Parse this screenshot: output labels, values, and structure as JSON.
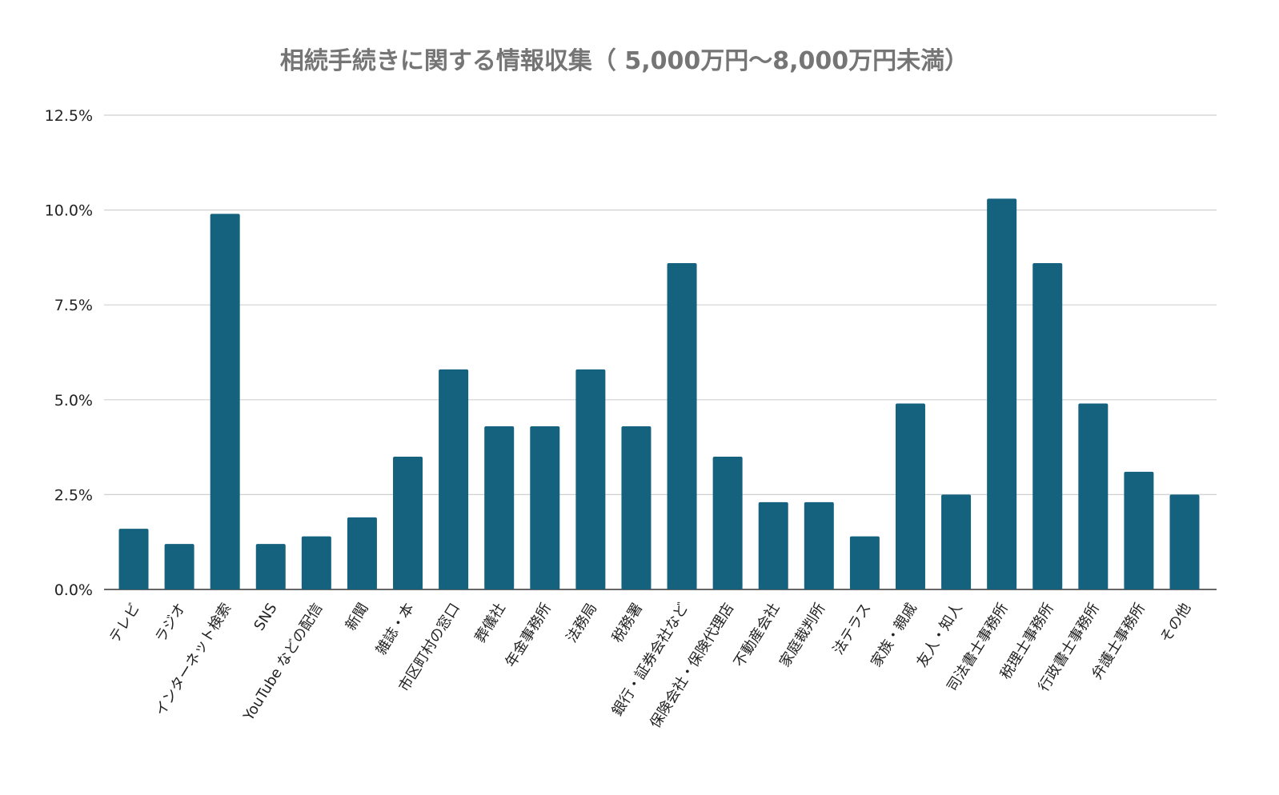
{
  "chart_data": {
    "type": "bar",
    "title": "相続手続きに関する情報収集（ 5,000万円～8,000万円未満）",
    "xlabel": "",
    "ylabel": "",
    "ylim": [
      0,
      12.5
    ],
    "yticks": [
      "0.0%",
      "2.5%",
      "5.0%",
      "7.5%",
      "10.0%",
      "12.5%"
    ],
    "grid": true,
    "color": "#15627f",
    "categories": [
      "テレビ",
      "ラジオ",
      "インターネット検索",
      "SNS",
      "YouTube などの配信",
      "新聞",
      "雑誌・本",
      "市区町村の窓口",
      "葬儀社",
      "年金事務所",
      "法務局",
      "税務署",
      "銀行・証券会社など",
      "保険会社・保険代理店",
      "不動産会社",
      "家庭裁判所",
      "法テラス",
      "家族・親戚",
      "友人・知人",
      "司法書士事務所",
      "税理士事務所",
      "行政書士事務所",
      "弁護士事務所",
      "その他"
    ],
    "values": [
      1.6,
      1.2,
      9.9,
      1.2,
      1.4,
      1.9,
      3.5,
      5.8,
      4.3,
      4.3,
      5.8,
      4.3,
      8.6,
      3.5,
      2.3,
      2.3,
      1.4,
      4.9,
      2.5,
      10.3,
      8.6,
      4.9,
      3.1,
      2.5
    ]
  }
}
